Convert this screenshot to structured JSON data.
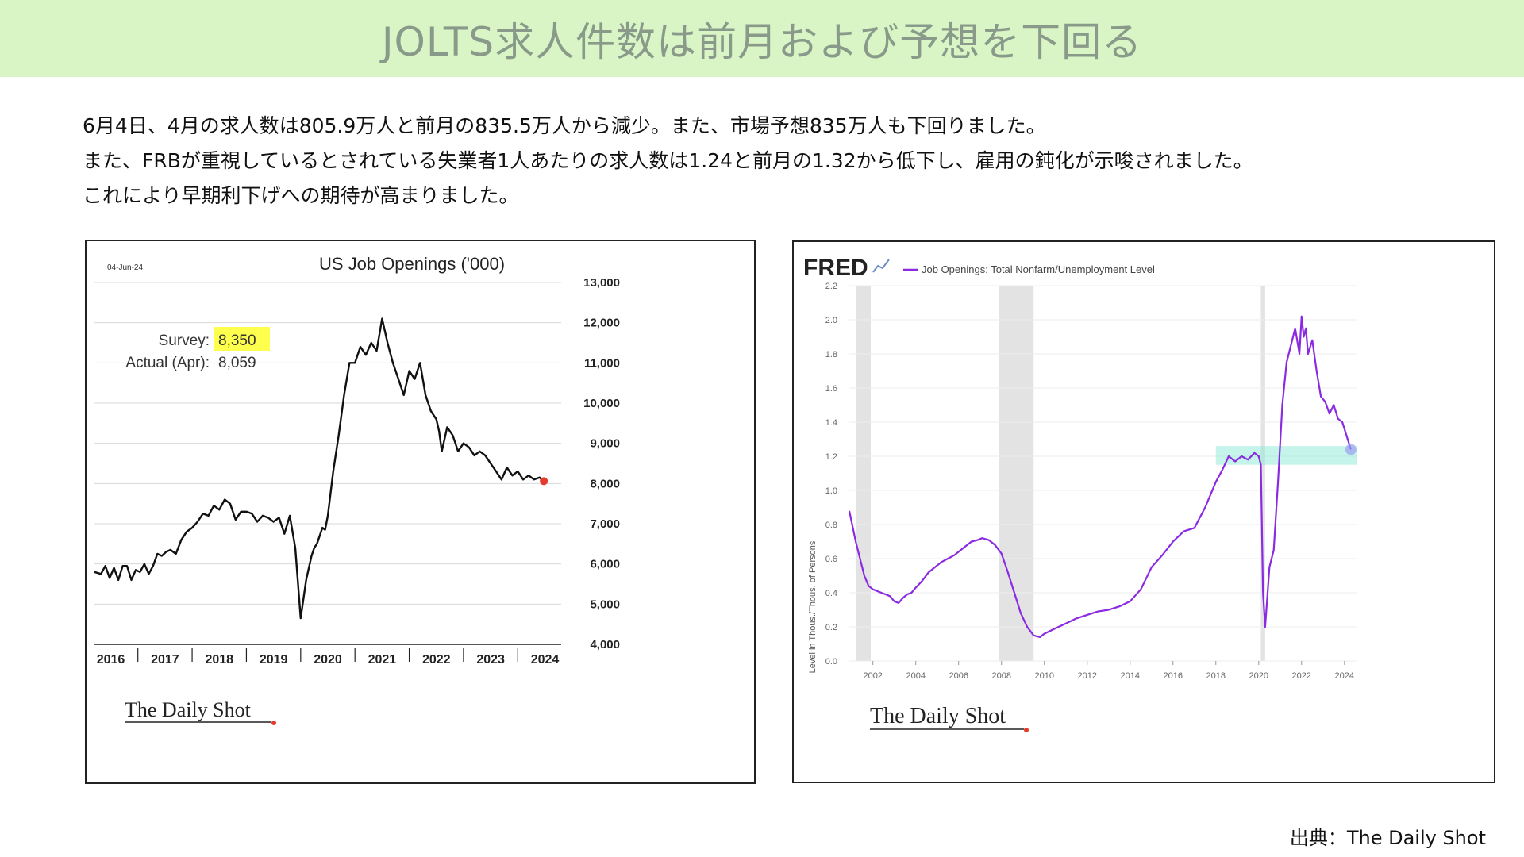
{
  "banner": {
    "title": "JOLTS求人件数は前月および予想を下回る"
  },
  "body": {
    "lines": [
      "6月4日、4月の求人数は805.9万人と前月の835.5万人から減少。また、市場予想835万人も下回りました。",
      "また、FRBが重視しているとされている失業者1人あたりの求人数は1.24と前月の1.32から低下し、雇用の鈍化が示唆されました。",
      "これにより早期利下げへの期待が高まりました。"
    ]
  },
  "source": "出典：The Daily Shot",
  "chart_data": [
    {
      "type": "line",
      "title": "US Job Openings ('000)",
      "date_label": "04-Jun-24",
      "annotation": {
        "survey_label": "Survey:",
        "survey_value": "8,350",
        "actual_label": "Actual (Apr):",
        "actual_value": "8,059"
      },
      "watermark": "The Daily Shot",
      "xlim": [
        2016.0,
        2024.6
      ],
      "ylim": [
        4000,
        13000
      ],
      "y_ticks": [
        "13,000",
        "12,000",
        "11,000",
        "10,000",
        "9,000",
        "8,000",
        "7,000",
        "6,000",
        "5,000",
        "4,000"
      ],
      "y_tick_values": [
        13000,
        12000,
        11000,
        10000,
        9000,
        8000,
        7000,
        6000,
        5000,
        4000
      ],
      "x_ticks": [
        "2016",
        "2017",
        "2018",
        "2019",
        "2020",
        "2021",
        "2022",
        "2023",
        "2024"
      ],
      "x_tick_values": [
        2016.3,
        2017.3,
        2018.3,
        2019.3,
        2020.3,
        2021.3,
        2022.3,
        2023.3,
        2024.3
      ],
      "grid": true,
      "highlight_color": "#ffff4d",
      "line_color": "#111111",
      "last_point_color": "#e53b2c",
      "series": [
        {
          "x": [
            2016.0,
            2016.12,
            2016.2,
            2016.28,
            2016.36,
            2016.44,
            2016.52,
            2016.6,
            2016.68,
            2016.76,
            2016.84,
            2016.92,
            2017.0,
            2017.08,
            2017.16,
            2017.24,
            2017.32,
            2017.4,
            2017.5,
            2017.6,
            2017.7,
            2017.8,
            2017.9,
            2018.0,
            2018.1,
            2018.2,
            2018.3,
            2018.4,
            2018.5,
            2018.6,
            2018.7,
            2018.8,
            2018.9,
            2019.0,
            2019.1,
            2019.2,
            2019.3,
            2019.4,
            2019.5,
            2019.6,
            2019.7,
            2019.8,
            2019.9,
            2020.0,
            2020.05,
            2020.1,
            2020.2,
            2020.25,
            2020.3,
            2020.4,
            2020.5,
            2020.6,
            2020.7,
            2020.8,
            2020.9,
            2021.0,
            2021.1,
            2021.2,
            2021.3,
            2021.4,
            2021.5,
            2021.6,
            2021.7,
            2021.8,
            2021.9,
            2022.0,
            2022.1,
            2022.2,
            2022.3,
            2022.35,
            2022.4,
            2022.5,
            2022.6,
            2022.7,
            2022.8,
            2022.9,
            2023.0,
            2023.1,
            2023.2,
            2023.3,
            2023.4,
            2023.5,
            2023.6,
            2023.7,
            2023.8,
            2023.9,
            2024.0,
            2024.1,
            2024.2,
            2024.28
          ],
          "y": [
            5800,
            5750,
            5950,
            5650,
            5900,
            5600,
            5950,
            5950,
            5600,
            5850,
            5800,
            6000,
            5750,
            5950,
            6250,
            6200,
            6300,
            6350,
            6250,
            6600,
            6800,
            6900,
            7050,
            7250,
            7200,
            7450,
            7350,
            7600,
            7500,
            7100,
            7300,
            7300,
            7250,
            7050,
            7200,
            7150,
            7050,
            7150,
            6750,
            7200,
            6400,
            4650,
            5600,
            6200,
            6400,
            6500,
            6900,
            6850,
            7200,
            8300,
            9200,
            10200,
            11000,
            11000,
            11400,
            11200,
            11500,
            11300,
            12100,
            11500,
            11000,
            10600,
            10200,
            10800,
            10600,
            11000,
            10200,
            9800,
            9600,
            9300,
            8800,
            9400,
            9200,
            8800,
            9000,
            8900,
            8700,
            8800,
            8700,
            8500,
            8300,
            8100,
            8400,
            8200,
            8300,
            8100,
            8200,
            8100,
            8150,
            8059
          ]
        }
      ]
    },
    {
      "type": "line",
      "title": "Job Openings: Total Nonfarm/Unemployment Level",
      "brand": "FRED",
      "ylabel": "Level in Thous./Thous. of Persons",
      "watermark": "The Daily Shot",
      "xlim": [
        2000.9,
        2024.6
      ],
      "ylim": [
        0.0,
        2.2
      ],
      "y_ticks": [
        "2.2",
        "2.0",
        "1.8",
        "1.6",
        "1.4",
        "1.2",
        "1.0",
        "0.8",
        "0.6",
        "0.4",
        "0.2",
        "0.0"
      ],
      "y_tick_values": [
        2.2,
        2.0,
        1.8,
        1.6,
        1.4,
        1.2,
        1.0,
        0.8,
        0.6,
        0.4,
        0.2,
        0.0
      ],
      "x_ticks": [
        "2002",
        "2004",
        "2006",
        "2008",
        "2010",
        "2012",
        "2014",
        "2016",
        "2018",
        "2020",
        "2022",
        "2024"
      ],
      "x_tick_values": [
        2002,
        2004,
        2006,
        2008,
        2010,
        2012,
        2014,
        2016,
        2018,
        2020,
        2022,
        2024
      ],
      "recessions": [
        [
          2001.2,
          2001.9
        ],
        [
          2007.9,
          2009.5
        ],
        [
          2020.1,
          2020.3
        ]
      ],
      "highlight_band": {
        "x": [
          2018.0,
          2024.6
        ],
        "y": [
          1.15,
          1.26
        ]
      },
      "grid": true,
      "line_color": "#8a2be2",
      "band_color": "#7fe8d0",
      "series": [
        {
          "x": [
            2000.9,
            2001.0,
            2001.2,
            2001.4,
            2001.6,
            2001.8,
            2002.0,
            2002.2,
            2002.4,
            2002.6,
            2002.8,
            2003.0,
            2003.2,
            2003.4,
            2003.6,
            2003.8,
            2004.0,
            2004.3,
            2004.6,
            2004.9,
            2005.2,
            2005.5,
            2005.8,
            2006.0,
            2006.3,
            2006.6,
            2006.9,
            2007.1,
            2007.4,
            2007.7,
            2008.0,
            2008.3,
            2008.6,
            2008.9,
            2009.2,
            2009.5,
            2009.8,
            2010.0,
            2010.5,
            2011.0,
            2011.5,
            2012.0,
            2012.5,
            2013.0,
            2013.5,
            2014.0,
            2014.5,
            2015.0,
            2015.5,
            2016.0,
            2016.5,
            2017.0,
            2017.5,
            2018.0,
            2018.3,
            2018.6,
            2018.9,
            2019.2,
            2019.5,
            2019.8,
            2020.0,
            2020.1,
            2020.2,
            2020.3,
            2020.5,
            2020.7,
            2020.9,
            2021.1,
            2021.3,
            2021.5,
            2021.7,
            2021.9,
            2022.0,
            2022.1,
            2022.2,
            2022.3,
            2022.5,
            2022.7,
            2022.9,
            2023.1,
            2023.3,
            2023.5,
            2023.7,
            2023.9,
            2024.1,
            2024.3
          ],
          "y": [
            0.88,
            0.82,
            0.7,
            0.6,
            0.5,
            0.44,
            0.42,
            0.41,
            0.4,
            0.39,
            0.38,
            0.35,
            0.34,
            0.37,
            0.39,
            0.4,
            0.43,
            0.47,
            0.52,
            0.55,
            0.58,
            0.6,
            0.62,
            0.64,
            0.67,
            0.7,
            0.71,
            0.72,
            0.71,
            0.68,
            0.63,
            0.52,
            0.4,
            0.28,
            0.2,
            0.15,
            0.14,
            0.16,
            0.19,
            0.22,
            0.25,
            0.27,
            0.29,
            0.3,
            0.32,
            0.35,
            0.42,
            0.55,
            0.62,
            0.7,
            0.76,
            0.78,
            0.9,
            1.05,
            1.12,
            1.2,
            1.17,
            1.2,
            1.18,
            1.22,
            1.2,
            1.15,
            0.4,
            0.2,
            0.55,
            0.65,
            1.05,
            1.5,
            1.75,
            1.85,
            1.95,
            1.8,
            2.02,
            1.9,
            1.95,
            1.8,
            1.88,
            1.7,
            1.55,
            1.52,
            1.45,
            1.5,
            1.42,
            1.4,
            1.32,
            1.24
          ]
        }
      ]
    }
  ]
}
